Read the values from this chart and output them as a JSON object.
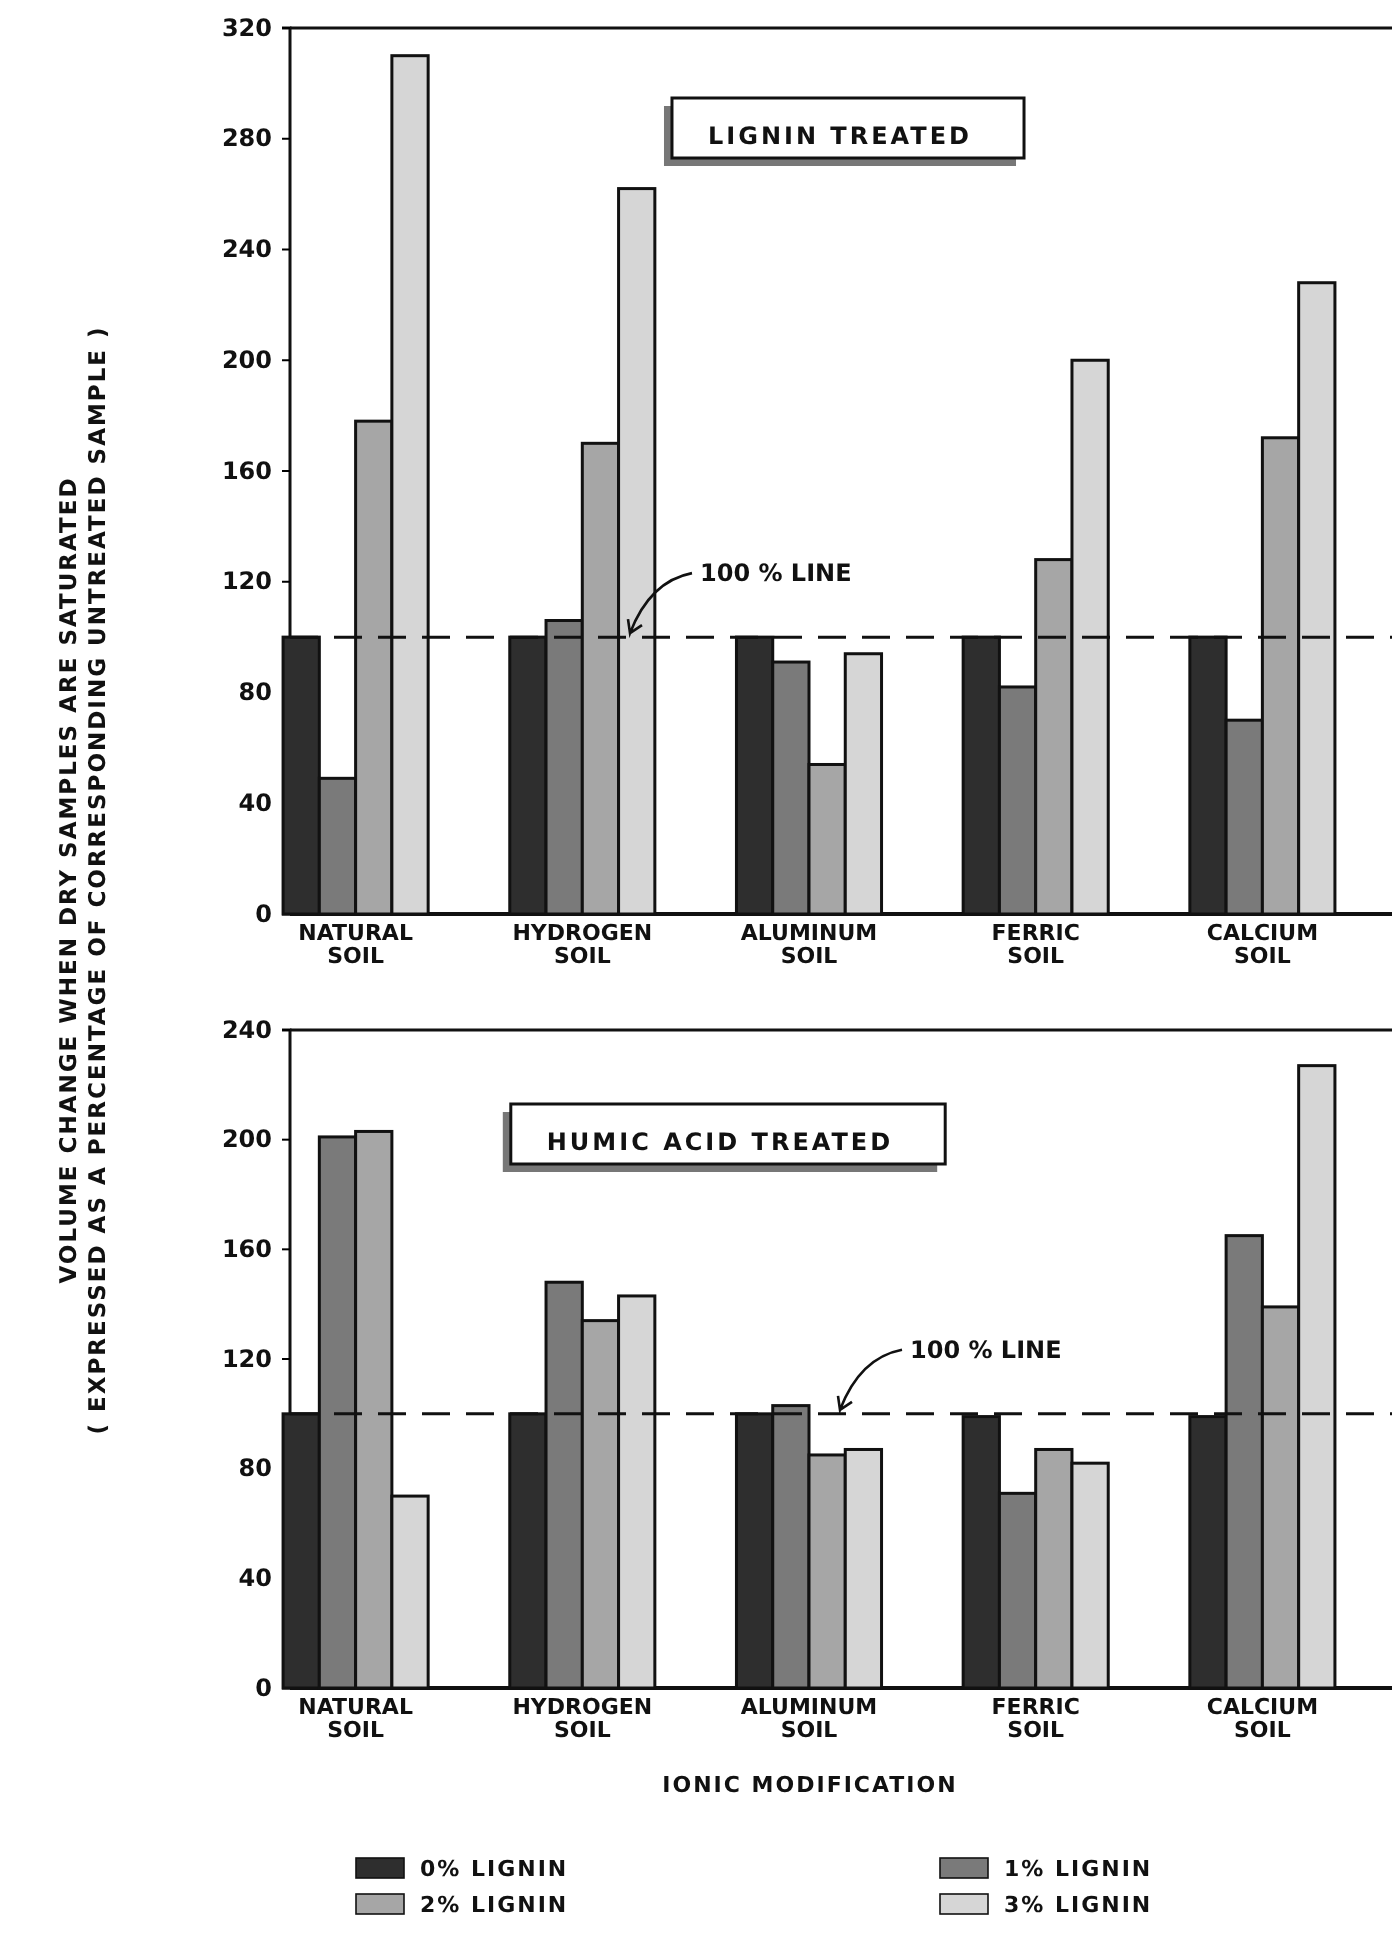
{
  "chart_data": [
    {
      "type": "bar",
      "title": "LIGNIN TREATED",
      "ylabel": "VOLUME CHANGE WHEN DRY SAMPLES ARE SATURATED\n( EXPRESSED AS A PERCENTAGE OF CORRESPONDING UNTREATED SAMPLE )",
      "categories": [
        "NATURAL SOIL",
        "HYDROGEN SOIL",
        "ALUMINUM SOIL",
        "FERRIC SOIL",
        "CALCIUM SOIL"
      ],
      "series": [
        {
          "color": "#2e2e2e",
          "values": [
            100,
            100,
            100,
            100,
            100
          ]
        },
        {
          "color": "#7a7a7a",
          "values": [
            49,
            106,
            91,
            82,
            70
          ]
        },
        {
          "color": "#a6a6a6",
          "values": [
            178,
            170,
            54,
            128,
            172
          ]
        },
        {
          "color": "#d6d6d6",
          "values": [
            310,
            262,
            94,
            200,
            228
          ]
        }
      ],
      "ylim": [
        0,
        320
      ],
      "yticks": [
        0,
        40,
        80,
        120,
        160,
        200,
        240,
        280,
        320
      ],
      "ref_lines": [
        {
          "axis": "y",
          "value": 100,
          "label": "100 % LINE",
          "line_style": "dashed"
        }
      ]
    },
    {
      "type": "bar",
      "title": "HUMIC ACID TREATED",
      "xlabel": "IONIC MODIFICATION",
      "categories": [
        "NATURAL SOIL",
        "HYDROGEN SOIL",
        "ALUMINUM SOIL",
        "FERRIC SOIL",
        "CALCIUM SOIL"
      ],
      "series": [
        {
          "name": "0% LIGNIN",
          "color": "#2e2e2e",
          "values": [
            100,
            100,
            100,
            99,
            99
          ]
        },
        {
          "name": "1% LIGNIN",
          "color": "#7a7a7a",
          "values": [
            201,
            148,
            103,
            71,
            165
          ]
        },
        {
          "name": "2% LIGNIN",
          "color": "#a6a6a6",
          "values": [
            203,
            134,
            85,
            87,
            139
          ]
        },
        {
          "name": "3% LIGNIN",
          "color": "#d6d6d6",
          "values": [
            70,
            143,
            87,
            82,
            227
          ]
        }
      ],
      "ylim": [
        0,
        240
      ],
      "yticks": [
        0,
        40,
        80,
        120,
        160,
        200,
        240
      ],
      "ref_lines": [
        {
          "axis": "y",
          "value": 100,
          "label": "100 % LINE",
          "line_style": "dashed"
        }
      ],
      "legend": "bottom"
    }
  ]
}
